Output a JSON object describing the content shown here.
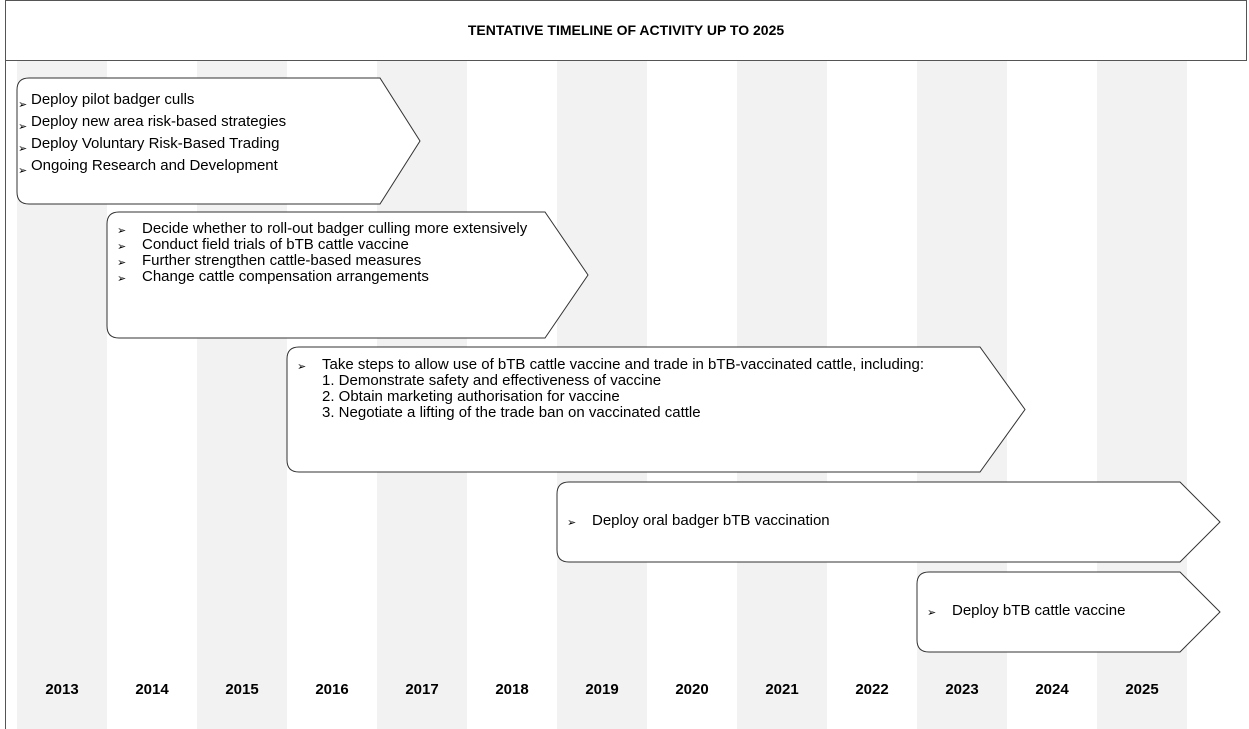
{
  "title": "TENTATIVE TIMELINE OF ACTIVITY UP TO 2025",
  "years": [
    "2013",
    "2014",
    "2015",
    "2016",
    "2017",
    "2018",
    "2019",
    "2020",
    "2021",
    "2022",
    "2023",
    "2024",
    "2025"
  ],
  "activities": [
    {
      "items": [
        {
          "text": "Deploy pilot badger culls"
        },
        {
          "text": "Deploy new area risk-based strategies"
        },
        {
          "text": "Deploy Voluntary Risk-Based Trading"
        },
        {
          "text": "Ongoing Research and Development"
        }
      ]
    },
    {
      "items": [
        {
          "text": "Decide whether to roll-out badger culling more extensively"
        },
        {
          "text": "Conduct field trials of bTB cattle vaccine"
        },
        {
          "text": "Further strengthen cattle-based measures"
        },
        {
          "text": "Change cattle compensation arrangements"
        }
      ]
    },
    {
      "items": [
        {
          "text": "Take steps to allow use of bTB cattle vaccine and trade in bTB-vaccinated cattle, including:",
          "subitems": [
            "1. Demonstrate safety and effectiveness of vaccine",
            "2. Obtain marketing authorisation for vaccine",
            "3. Negotiate a lifting of the trade ban on vaccinated cattle"
          ]
        }
      ]
    },
    {
      "items": [
        {
          "text": "Deploy oral badger bTB vaccination"
        }
      ]
    },
    {
      "items": [
        {
          "text": "Deploy bTB cattle vaccine"
        }
      ]
    }
  ]
}
